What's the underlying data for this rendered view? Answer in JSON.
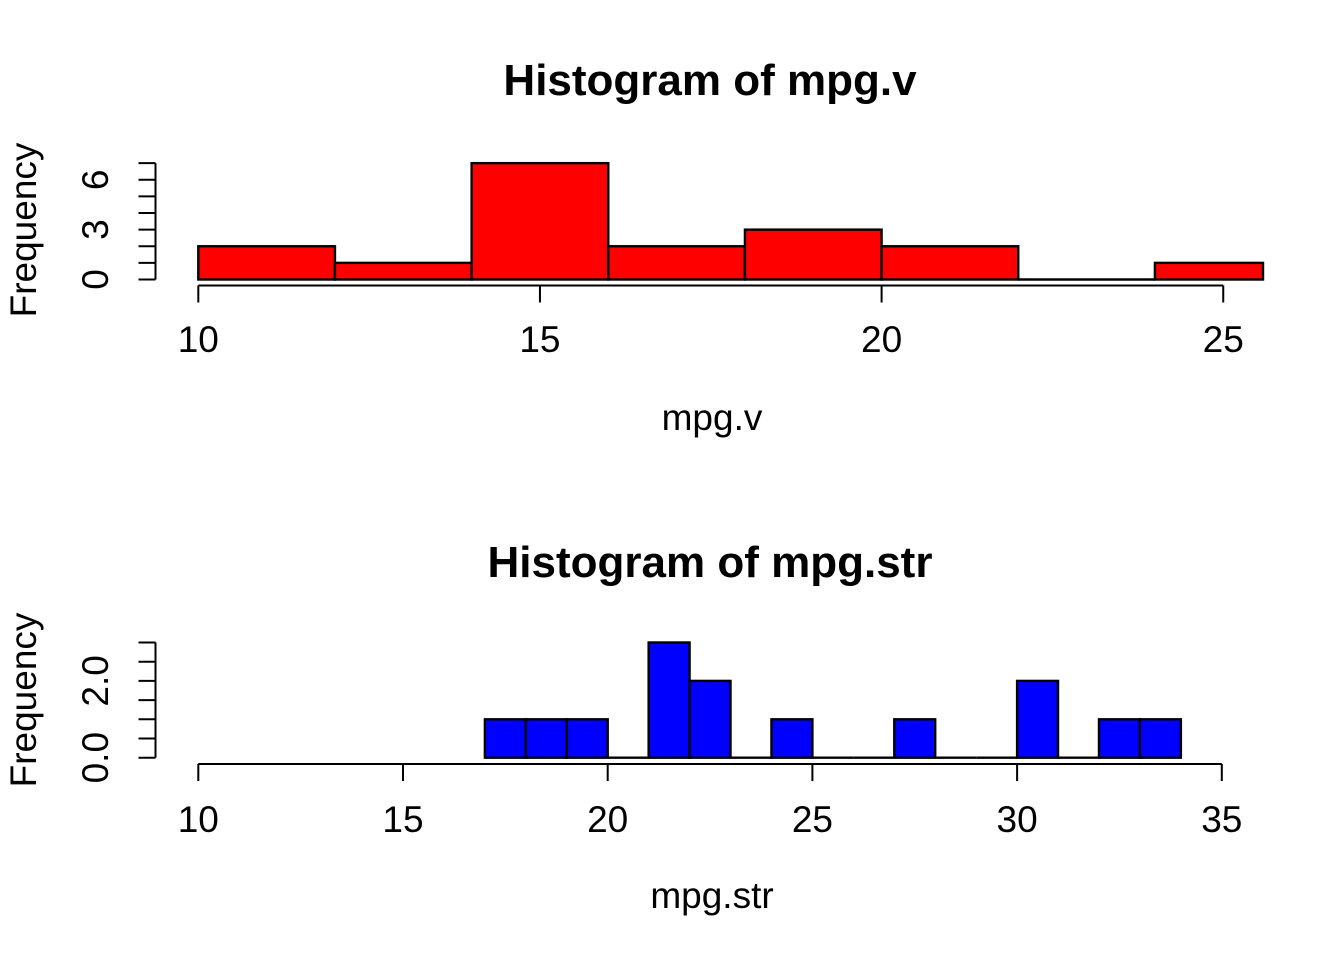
{
  "figure": {
    "background": "#FFFFFF"
  },
  "chart_data": [
    {
      "type": "bar",
      "subtype": "histogram",
      "title": "Histogram of mpg.v",
      "xlabel": "mpg.v",
      "ylabel": "Frequency",
      "bar_fill": "#FF0000",
      "bar_stroke": "#000000",
      "bin_breaks": [
        10,
        12,
        14,
        16,
        18,
        20,
        22,
        24,
        26
      ],
      "counts": [
        2,
        1,
        7,
        2,
        3,
        2,
        0,
        1
      ],
      "x_ticks": [
        10,
        15,
        20,
        25
      ],
      "y_ticks": [
        0,
        1,
        2,
        3,
        4,
        5,
        6,
        7
      ],
      "y_labeled_ticks": [
        {
          "value": 0,
          "label": "0"
        },
        {
          "value": 3,
          "label": "3"
        },
        {
          "value": 6,
          "label": "6"
        }
      ],
      "xlim": [
        10,
        25
      ],
      "ylim": [
        0,
        7
      ],
      "grid": false,
      "legend": "none"
    },
    {
      "type": "bar",
      "subtype": "histogram",
      "title": "Histogram of mpg.str",
      "xlabel": "mpg.str",
      "ylabel": "Frequency",
      "bar_fill": "#0000FF",
      "bar_stroke": "#000000",
      "bin_breaks": [
        17,
        18,
        19,
        20,
        21,
        22,
        23,
        24,
        25,
        26,
        27,
        28,
        29,
        30,
        31,
        32,
        33,
        34
      ],
      "counts": [
        1,
        1,
        1,
        0,
        3,
        2,
        0,
        1,
        0,
        0,
        1,
        0,
        0,
        2,
        0,
        1,
        1
      ],
      "x_ticks": [
        10,
        15,
        20,
        25,
        30,
        35
      ],
      "y_ticks": [
        0,
        0.5,
        1,
        1.5,
        2,
        2.5,
        3
      ],
      "y_labeled_ticks": [
        {
          "value": 0,
          "label": "0.0"
        },
        {
          "value": 2,
          "label": "2.0"
        }
      ],
      "xlim": [
        10,
        35
      ],
      "ylim": [
        0,
        3
      ],
      "grid": false,
      "legend": "none"
    }
  ]
}
